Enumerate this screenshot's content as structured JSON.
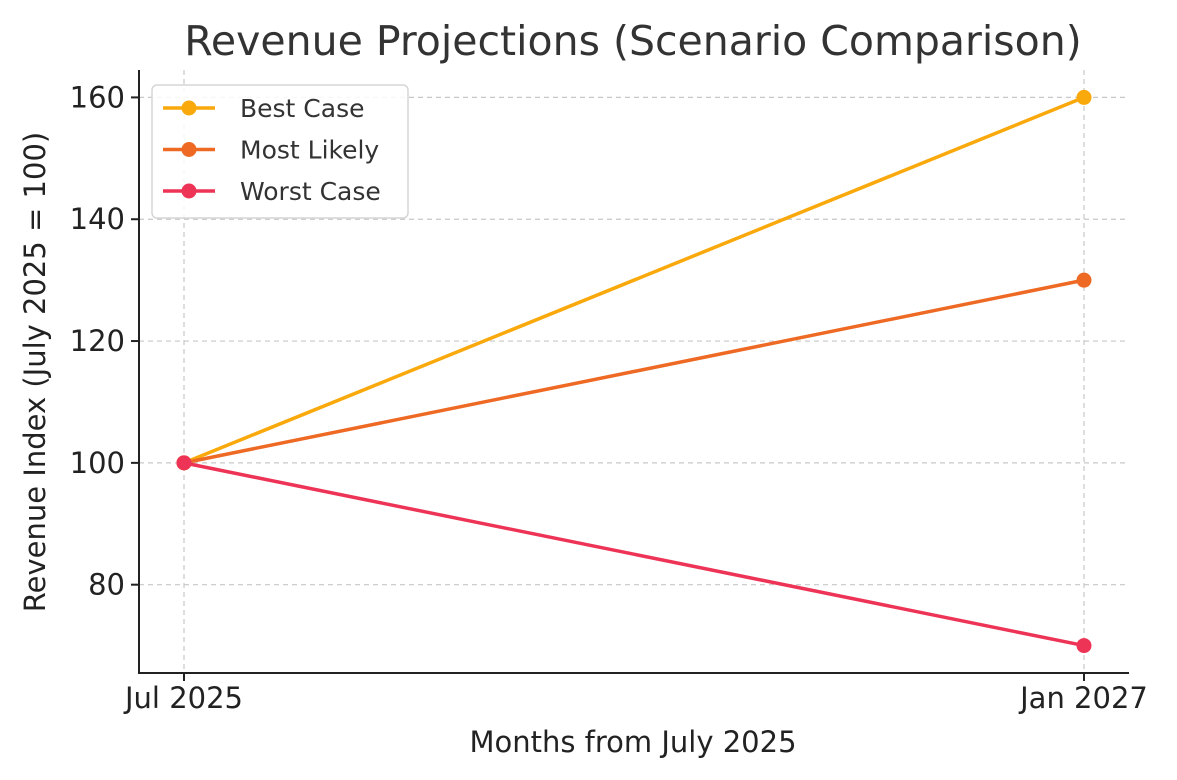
{
  "chart_data": {
    "type": "line",
    "title": "Revenue Projections (Scenario Comparison)",
    "xlabel": "Months from July 2025",
    "ylabel": "Revenue Index (July 2025 = 100)",
    "x": [
      0,
      18
    ],
    "x_tick_values": [
      0,
      18
    ],
    "x_tick_labels": [
      "Jul 2025",
      "Jan 2027"
    ],
    "xlim": [
      -0.9,
      18.9
    ],
    "ylim": [
      65.5,
      164.5
    ],
    "y_ticks": [
      80,
      100,
      120,
      140,
      160
    ],
    "grid": true,
    "legend_position": "top-left",
    "series": [
      {
        "name": "Best Case",
        "values": [
          100,
          160
        ],
        "color": "#F9A90B"
      },
      {
        "name": "Most Likely",
        "values": [
          100,
          130
        ],
        "color": "#EE6A24"
      },
      {
        "name": "Worst Case",
        "values": [
          100,
          70
        ],
        "color": "#EE3456"
      }
    ]
  }
}
